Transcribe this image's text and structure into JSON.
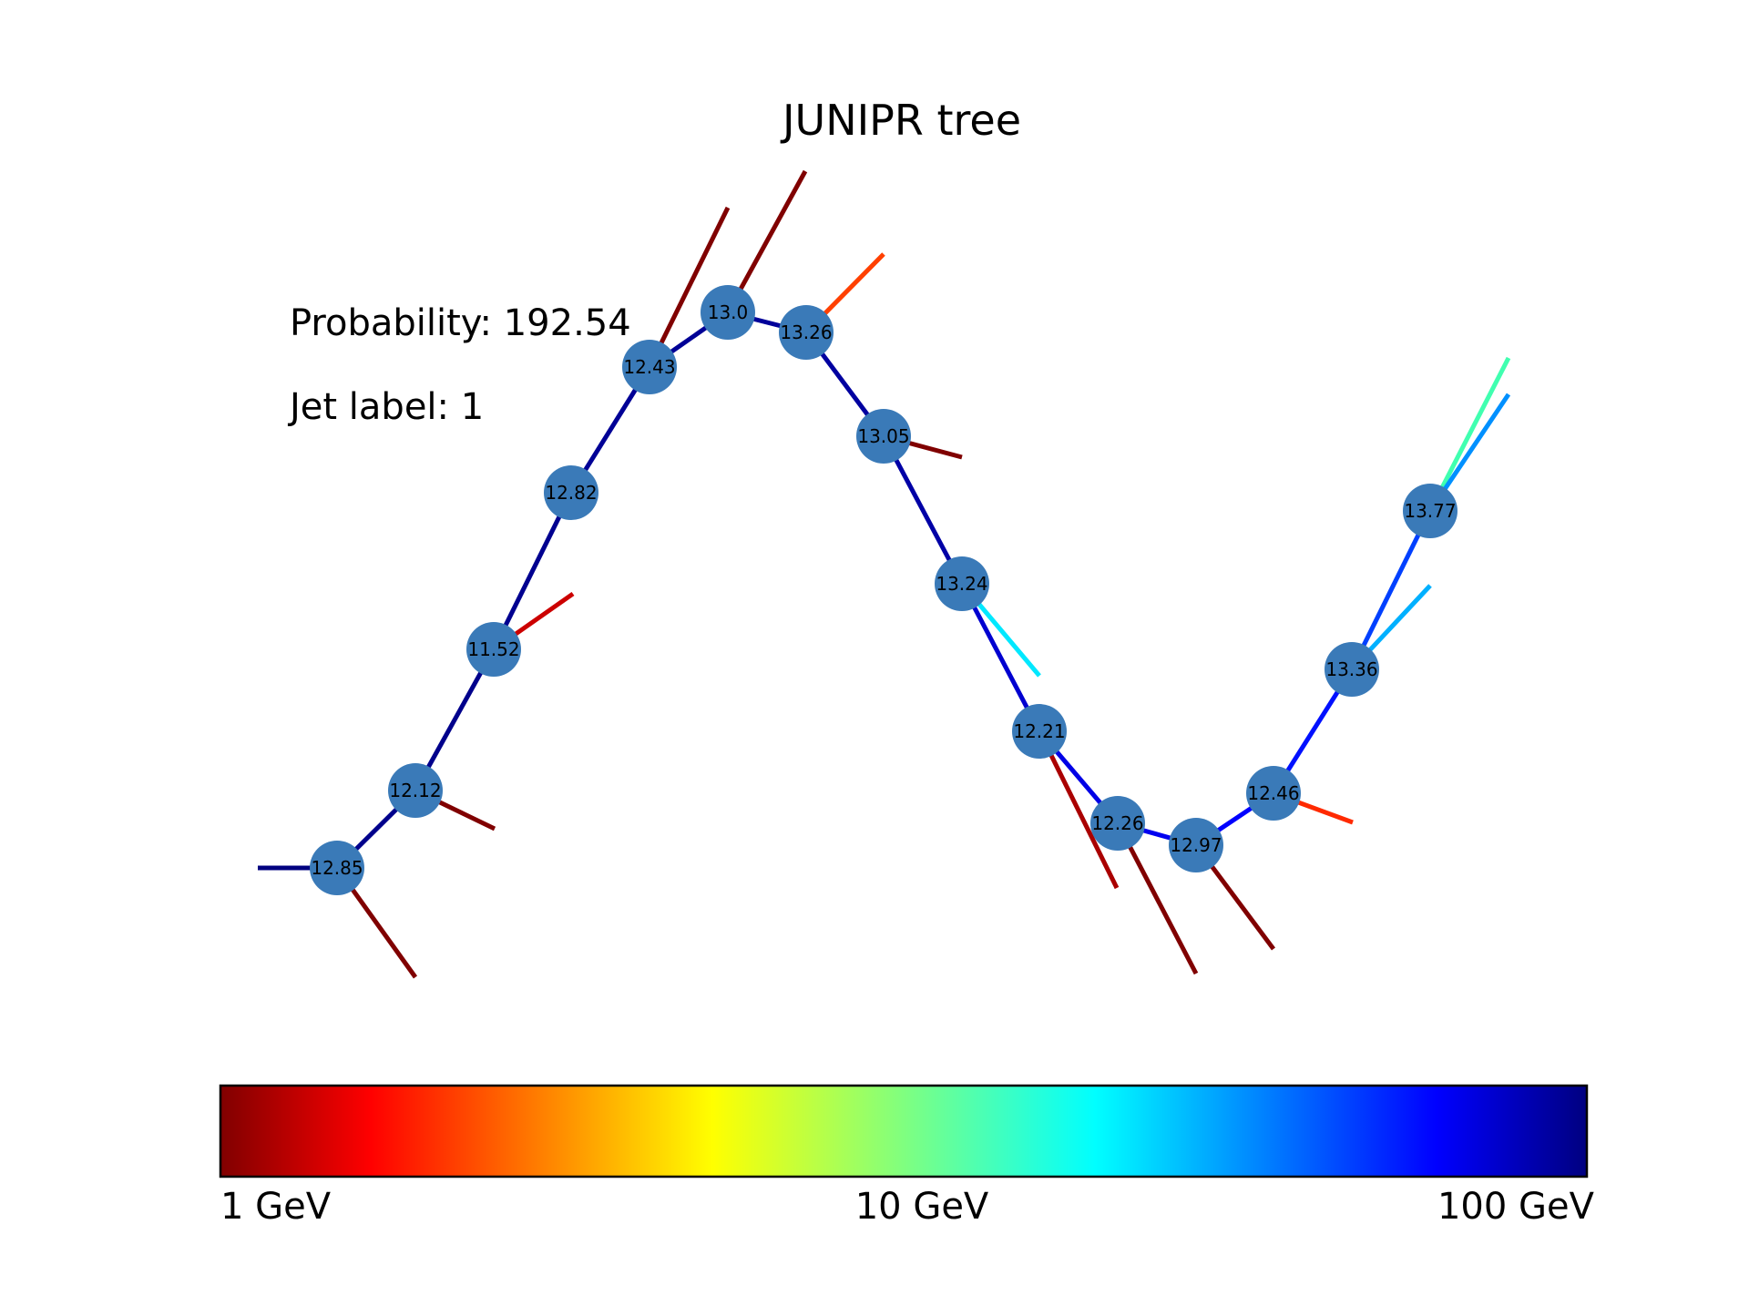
{
  "title": "JUNIPR tree",
  "info": {
    "probability_text": "Probability: 192.54",
    "jet_label_text": "Jet label: 1"
  },
  "colorbar": {
    "colormap": "jet (reversed)",
    "scale": "log",
    "tick_labels": [
      "1 GeV",
      "10 GeV",
      "100 GeV"
    ]
  },
  "node_color": "#3a7ab8",
  "tree": {
    "nodes": [
      {
        "id": "n0",
        "label": "12.85"
      },
      {
        "id": "n1",
        "label": "12.12"
      },
      {
        "id": "n2",
        "label": "11.52"
      },
      {
        "id": "n3",
        "label": "12.82"
      },
      {
        "id": "n4",
        "label": "12.43"
      },
      {
        "id": "n5",
        "label": "13.0"
      },
      {
        "id": "n6",
        "label": "13.26"
      },
      {
        "id": "n7",
        "label": "13.05"
      },
      {
        "id": "n8",
        "label": "13.24"
      },
      {
        "id": "n9",
        "label": "12.21"
      },
      {
        "id": "n10",
        "label": "12.26"
      },
      {
        "id": "n11",
        "label": "12.97"
      },
      {
        "id": "n12",
        "label": "12.46"
      },
      {
        "id": "n13",
        "label": "13.36"
      },
      {
        "id": "n14",
        "label": "13.77"
      }
    ],
    "edges": [
      {
        "from": "root",
        "to": "n0",
        "color": "#000080"
      },
      {
        "from": "n0",
        "to": "n1",
        "color": "#00008c"
      },
      {
        "from": "n1",
        "to": "n2",
        "color": "#00008c"
      },
      {
        "from": "n2",
        "to": "n3",
        "color": "#000090"
      },
      {
        "from": "n3",
        "to": "n4",
        "color": "#000096"
      },
      {
        "from": "n4",
        "to": "n5",
        "color": "#000096"
      },
      {
        "from": "n5",
        "to": "n6",
        "color": "#00009a"
      },
      {
        "from": "n6",
        "to": "n7",
        "color": "#0000a0"
      },
      {
        "from": "n7",
        "to": "n8",
        "color": "#0000a6"
      },
      {
        "from": "n8",
        "to": "n9",
        "color": "#0000d0"
      },
      {
        "from": "n9",
        "to": "n10",
        "color": "#0000e6"
      },
      {
        "from": "n10",
        "to": "n11",
        "color": "#0000f0"
      },
      {
        "from": "n11",
        "to": "n12",
        "color": "#0000ff"
      },
      {
        "from": "n12",
        "to": "n13",
        "color": "#0010ff"
      },
      {
        "from": "n13",
        "to": "n14",
        "color": "#0040ff"
      }
    ],
    "leaves": [
      {
        "from": "n0",
        "color": "#800000"
      },
      {
        "from": "n1",
        "color": "#800000"
      },
      {
        "from": "n2",
        "color": "#cc0000"
      },
      {
        "from": "n4",
        "color": "#800000"
      },
      {
        "from": "n5",
        "color": "#800000"
      },
      {
        "from": "n6",
        "color": "#ff4000"
      },
      {
        "from": "n7",
        "color": "#800000"
      },
      {
        "from": "n8",
        "color": "#00e8ff"
      },
      {
        "from": "n9",
        "color": "#aa0000"
      },
      {
        "from": "n10",
        "color": "#800000"
      },
      {
        "from": "n11",
        "color": "#800000"
      },
      {
        "from": "n12",
        "color": "#ff2a00"
      },
      {
        "from": "n13",
        "color": "#00b0ff"
      },
      {
        "from": "n14a",
        "color": "#40ffb0"
      },
      {
        "from": "n14b",
        "color": "#0090ff"
      }
    ]
  }
}
